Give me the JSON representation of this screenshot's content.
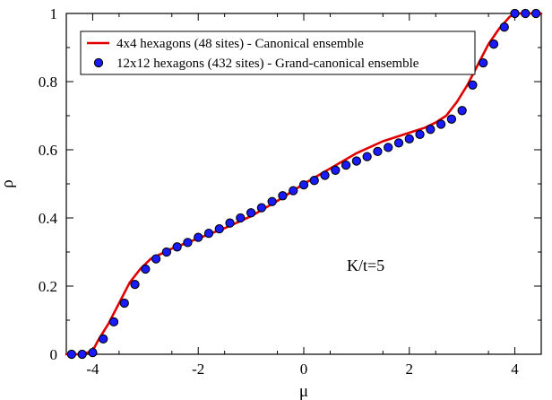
{
  "chart_data": {
    "type": "line",
    "xlabel": "μ",
    "ylabel": "ρ",
    "xlim": [
      -4.5,
      4.5
    ],
    "ylim": [
      0,
      1
    ],
    "x_ticks": [
      -4,
      -2,
      0,
      2,
      4
    ],
    "y_ticks": [
      0,
      0.2,
      0.4,
      0.6,
      0.8,
      1
    ],
    "x_tick_labels": [
      "-4",
      "-2",
      "0",
      "2",
      "4"
    ],
    "y_tick_labels": [
      "0",
      "0.2",
      "0.4",
      "0.6",
      "0.8",
      "1"
    ],
    "grid": false,
    "legend": {
      "position": "top-left",
      "entries": [
        "4x4 hexagons (48 sites) - Canonical ensemble",
        "12x12 hexagons (432 sites) - Grand-canonical ensemble"
      ]
    },
    "annotation": "K/t=5",
    "series": [
      {
        "name": "4x4 hexagons (48 sites) - Canonical ensemble",
        "kind": "line",
        "color": "#e00000",
        "x": [
          -4.5,
          -4.2,
          -4.0,
          -3.9,
          -3.7,
          -3.5,
          -3.3,
          -3.1,
          -2.9,
          -2.7,
          -2.5,
          -2.3,
          -2.0,
          -1.5,
          -1.0,
          -0.5,
          0.0,
          0.5,
          1.0,
          1.5,
          2.0,
          2.3,
          2.5,
          2.7,
          2.9,
          3.1,
          3.3,
          3.5,
          3.7,
          3.9,
          4.0,
          4.2,
          4.5
        ],
        "y": [
          0.0,
          0.0,
          0.01,
          0.04,
          0.09,
          0.15,
          0.21,
          0.25,
          0.28,
          0.295,
          0.31,
          0.322,
          0.34,
          0.37,
          0.405,
          0.45,
          0.5,
          0.545,
          0.59,
          0.625,
          0.65,
          0.665,
          0.68,
          0.7,
          0.74,
          0.79,
          0.85,
          0.91,
          0.955,
          0.99,
          1.0,
          1.0,
          1.0
        ]
      },
      {
        "name": "12x12 hexagons (432 sites) - Grand-canonical ensemble",
        "kind": "scatter",
        "color": "#1a1aff",
        "x": [
          -4.4,
          -4.2,
          -4.0,
          -3.8,
          -3.6,
          -3.4,
          -3.2,
          -3.0,
          -2.8,
          -2.6,
          -2.4,
          -2.2,
          -2.0,
          -1.8,
          -1.6,
          -1.4,
          -1.2,
          -1.0,
          -0.8,
          -0.6,
          -0.4,
          -0.2,
          0.0,
          0.2,
          0.4,
          0.6,
          0.8,
          1.0,
          1.2,
          1.4,
          1.6,
          1.8,
          2.0,
          2.2,
          2.4,
          2.6,
          2.8,
          3.0,
          3.2,
          3.4,
          3.6,
          3.8,
          4.0,
          4.2,
          4.4
        ],
        "y": [
          0.0,
          0.0,
          0.005,
          0.045,
          0.095,
          0.15,
          0.205,
          0.25,
          0.28,
          0.3,
          0.315,
          0.328,
          0.343,
          0.355,
          0.368,
          0.385,
          0.4,
          0.415,
          0.43,
          0.448,
          0.465,
          0.48,
          0.497,
          0.51,
          0.525,
          0.54,
          0.555,
          0.567,
          0.58,
          0.595,
          0.607,
          0.62,
          0.632,
          0.645,
          0.66,
          0.675,
          0.69,
          0.715,
          0.79,
          0.855,
          0.91,
          0.96,
          1.0,
          1.0,
          1.0
        ]
      }
    ]
  }
}
